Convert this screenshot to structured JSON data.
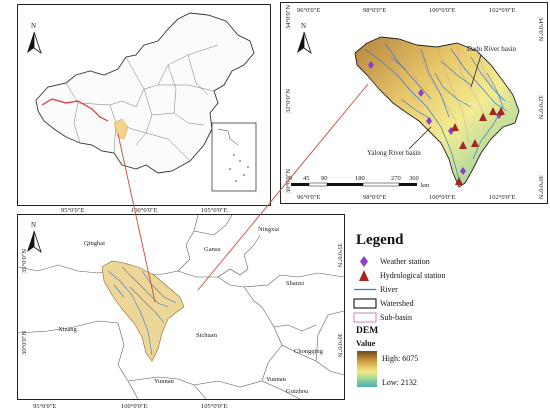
{
  "panels": {
    "china": {
      "north_label": "N",
      "ticks": {
        "lon": [
          "95°0'0\"E",
          "100°0'0\"E",
          "105°0'0\"E"
        ]
      }
    },
    "basin": {
      "north_label": "N",
      "ticks_top": [
        "96°0'0\"E",
        "98°0'0\"E",
        "100°0'0\"E",
        "102°0'0\"E"
      ],
      "ticks_bottom": [
        "96°0'0\"E",
        "98°0'0\"E",
        "100°0'0\"E",
        "102°0'0\"E"
      ],
      "ticks_left": [
        "34°0'0\"N",
        "32°0'0\"N",
        "30°0'0\"N"
      ],
      "ticks_right": [
        "34°0'0\"N",
        "32°0'0\"N",
        "30°0'0\"N"
      ],
      "annotations": {
        "dadu": "Dadu River basin",
        "yalong": "Yalong River basin"
      },
      "scale_values": [
        "0",
        "45",
        "90",
        "180",
        "270",
        "360"
      ],
      "scale_unit": "km"
    },
    "region": {
      "north_label": "N",
      "ticks_bottom": [
        "95°0'0\"E",
        "100°0'0\"E",
        "105°0'0\"E"
      ],
      "ticks_left": [
        "35°0'0\"N",
        "30°0'0\"N"
      ],
      "ticks_right": [
        "35°0'0\"N",
        "30°0'0\"N"
      ],
      "provinces": {
        "qinghai": "Qinghai",
        "gansu": "Gansu",
        "ningxia": "Ningxia",
        "shanxi": "Shanxi",
        "xizang": "Xizang",
        "sichuan": "Sichuan",
        "chongqing": "Chongqing",
        "yunnan1": "Yunnan",
        "yunnan2": "Yunnan",
        "guizhou": "Guizhou"
      }
    }
  },
  "legend": {
    "title": "Legend",
    "items": [
      {
        "label": "Weather station",
        "color": "#8a3fd0"
      },
      {
        "label": "Hydrological station",
        "color": "#a0281e"
      },
      {
        "label": "River",
        "color": "#3a78c8"
      },
      {
        "label": "Watershed",
        "color": "#111111"
      },
      {
        "label": "Sub-basin",
        "color": "#d080c0"
      }
    ],
    "dem_title": "DEM",
    "dem_value": "Value",
    "dem_high": "High: 6075",
    "dem_low": "Low: 2132"
  }
}
